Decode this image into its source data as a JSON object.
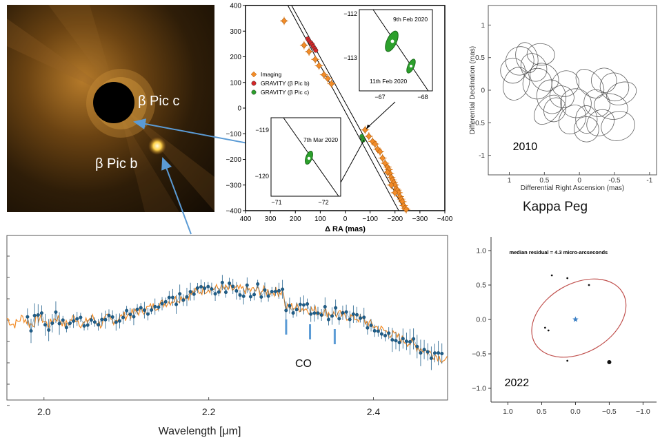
{
  "image_panel": {
    "label_c": "β Pic c",
    "label_b": "β Pic b"
  },
  "chart_data": [
    {
      "id": "orbit",
      "type": "scatter",
      "xlabel": "Δ RA (mas)",
      "xlim": [
        400,
        -400
      ],
      "ylim": [
        -400,
        400
      ],
      "xticks": [
        400,
        300,
        200,
        100,
        0,
        -100,
        -200,
        -300,
        -400
      ],
      "yticks": [
        400,
        300,
        200,
        100,
        0,
        -100,
        -200,
        -300,
        -400
      ],
      "legend": {
        "placement": "center-left",
        "entries": [
          {
            "label": "Imaging",
            "color": "#f28c28",
            "marker": "diamond"
          },
          {
            "label": "GRAVITY (β Pic b)",
            "color": "#d62728",
            "marker": "circle"
          },
          {
            "label": "GRAVITY (β Pic c)",
            "color": "#2ca02c",
            "marker": "circle"
          }
        ]
      },
      "series": [
        {
          "name": "Imaging",
          "color": "#f28c28",
          "points": [
            [
              245,
              340
            ],
            [
              165,
              245
            ],
            [
              145,
              220
            ],
            [
              120,
              190
            ],
            [
              105,
              165
            ],
            [
              85,
              130
            ],
            [
              70,
              115
            ],
            [
              55,
              95
            ],
            [
              -80,
              -85
            ],
            [
              -95,
              -110
            ],
            [
              -110,
              -130
            ],
            [
              -120,
              -140
            ],
            [
              -130,
              -160
            ],
            [
              -140,
              -170
            ],
            [
              -150,
              -195
            ],
            [
              -160,
              -215
            ],
            [
              -170,
              -230
            ],
            [
              -175,
              -240
            ],
            [
              -180,
              -255
            ],
            [
              -185,
              -270
            ],
            [
              -190,
              -280
            ],
            [
              -195,
              -290
            ],
            [
              -200,
              -300
            ],
            [
              -205,
              -315
            ],
            [
              -210,
              -320
            ],
            [
              -215,
              -330
            ],
            [
              -220,
              -345
            ],
            [
              -225,
              -355
            ],
            [
              -230,
              -365
            ],
            [
              -235,
              -380
            ],
            [
              -240,
              -390
            ],
            [
              -245,
              -395
            ],
            [
              -170,
              -250
            ],
            [
              -185,
              -300
            ],
            [
              -200,
              -330
            ]
          ]
        },
        {
          "name": "GRAVITY (β Pic b)",
          "color": "#d62728",
          "points": [
            [
              150,
              270
            ],
            [
              145,
              262
            ],
            [
              138,
              255
            ],
            [
              132,
              248
            ],
            [
              128,
              240
            ],
            [
              122,
              232
            ],
            [
              118,
              225
            ]
          ]
        },
        {
          "name": "GRAVITY (β Pic c)",
          "color": "#2ca02c",
          "points": [
            [
              -67,
              -110
            ],
            [
              -70,
              -118
            ],
            [
              -72,
              -125
            ]
          ]
        }
      ],
      "insets": [
        {
          "id": "inset_feb",
          "xticks": [
            -67,
            -68
          ],
          "yticks": [
            -112,
            -113
          ],
          "annotations": [
            "9th Feb 2020",
            "11th Feb 2020"
          ]
        },
        {
          "id": "inset_mar",
          "xticks": [
            -71,
            -72
          ],
          "yticks": [
            -119,
            -120
          ],
          "annotations": [
            "7th Mar 2020"
          ]
        }
      ]
    },
    {
      "id": "kappa2010",
      "type": "scatter",
      "xlabel": "Differential Right Ascension (mas)",
      "ylabel": "Differential Declination (mas)",
      "xlim": [
        1.3,
        -1.1
      ],
      "ylim": [
        -1.3,
        1.3
      ],
      "xticks": [
        1,
        0.5,
        0,
        -0.5,
        -1
      ],
      "yticks": [
        1,
        0.5,
        0,
        -0.5,
        -1
      ],
      "annotation": "2010",
      "ellipses": [
        [
          0.95,
          0.3
        ],
        [
          0.85,
          0.45
        ],
        [
          0.75,
          0.5
        ],
        [
          0.9,
          0.1
        ],
        [
          0.65,
          0.35
        ],
        [
          0.55,
          0.55
        ],
        [
          0.5,
          0.2
        ],
        [
          0.4,
          -0.1
        ],
        [
          0.35,
          -0.3
        ],
        [
          0.2,
          0.1
        ],
        [
          0.05,
          -0.2
        ],
        [
          -0.15,
          0.1
        ],
        [
          -0.35,
          0.15
        ],
        [
          -0.5,
          0.05
        ],
        [
          -0.6,
          -0.05
        ],
        [
          -0.45,
          -0.25
        ],
        [
          -0.3,
          -0.5
        ],
        [
          -0.1,
          -0.45
        ],
        [
          0.1,
          -0.45
        ],
        [
          -0.55,
          -0.55
        ],
        [
          0.25,
          -0.1
        ],
        [
          -0.25,
          -0.2
        ],
        [
          0.6,
          0.1
        ],
        [
          0.45,
          -0.3
        ],
        [
          -0.1,
          -0.6
        ]
      ]
    },
    {
      "id": "kappa2022",
      "type": "scatter",
      "xlim": [
        1.25,
        -1.2
      ],
      "ylim": [
        -1.2,
        1.2
      ],
      "xticks": [
        1.0,
        0.5,
        0.0,
        -0.5,
        -1.0
      ],
      "yticks": [
        1.0,
        0.5,
        0.0,
        -0.5,
        -1.0
      ],
      "annotation": "median residual = 4.3 micro-arcseconds",
      "year_label": "2022",
      "star": [
        0,
        0
      ],
      "points": [
        [
          0.35,
          0.64
        ],
        [
          0.12,
          0.6
        ],
        [
          -0.2,
          0.5
        ],
        [
          0.45,
          -0.12
        ],
        [
          0.4,
          -0.16
        ],
        [
          0.12,
          -0.6
        ],
        [
          -0.5,
          -0.62
        ]
      ]
    },
    {
      "id": "spectrum",
      "type": "line",
      "xlabel": "Wavelength [μm]",
      "xlim": [
        1.955,
        2.49
      ],
      "xticks": [
        2.0,
        2.2,
        2.4
      ],
      "annotation": "CO",
      "co_bandheads": [
        2.294,
        2.323,
        2.353
      ],
      "model_color": "#f28c28",
      "data_color": "#1f5f8b"
    }
  ],
  "titles": {
    "kappa_peg": "Kappa Peg"
  }
}
